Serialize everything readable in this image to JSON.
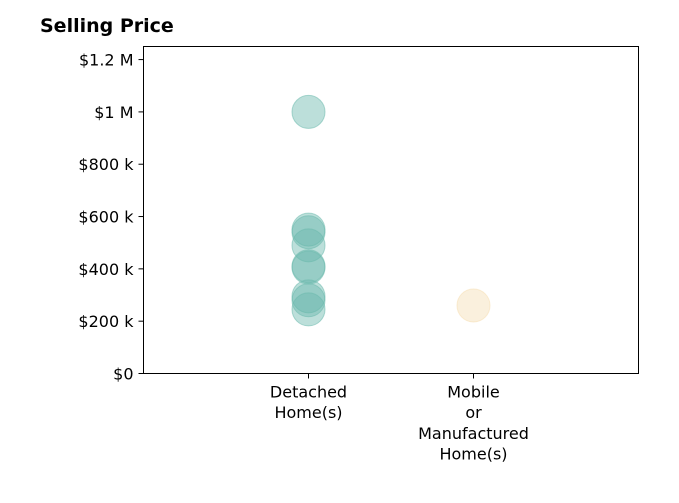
{
  "chart_data": {
    "type": "scatter",
    "title": "Selling Price",
    "xlabel": "",
    "ylabel": "",
    "categories": [
      [
        "Detached",
        "Home(s)"
      ],
      [
        "Mobile",
        "or",
        "Manufactured",
        "Home(s)"
      ]
    ],
    "y_ticks": [
      {
        "value": 0,
        "label": "$0"
      },
      {
        "value": 200000,
        "label": "$200 k"
      },
      {
        "value": 400000,
        "label": "$400 k"
      },
      {
        "value": 600000,
        "label": "$600 k"
      },
      {
        "value": 800000,
        "label": "$800 k"
      },
      {
        "value": 1000000,
        "label": "$1 M"
      },
      {
        "value": 1200000,
        "label": "$1.2 M"
      }
    ],
    "ylim": [
      0,
      1250000
    ],
    "xlim": [
      -1,
      2
    ],
    "grid": false,
    "series": [
      {
        "category_index": 0,
        "color": "#6bb9ad",
        "values": [
          1000000,
          550000,
          540000,
          490000,
          410000,
          405000,
          295000,
          280000,
          245000
        ]
      },
      {
        "category_index": 1,
        "color": "#f5deb3",
        "values": [
          260000
        ]
      }
    ]
  }
}
